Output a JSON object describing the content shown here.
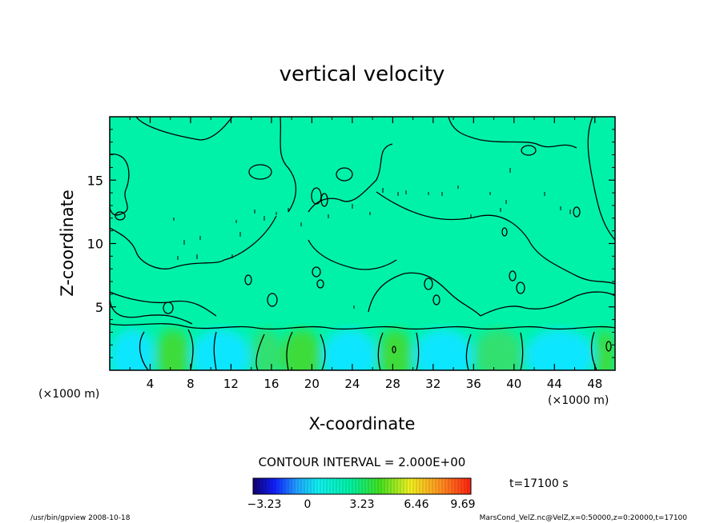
{
  "chart_data": {
    "type": "heatmap",
    "title": "vertical velocity",
    "xlabel": "X-coordinate",
    "ylabel": "Z-coordinate",
    "x_unit_left": "(×1000 m)",
    "x_unit_right": "(×1000 m)",
    "xlim": [
      0,
      50
    ],
    "ylim": [
      0,
      20
    ],
    "xticks": [
      4,
      8,
      12,
      16,
      20,
      24,
      28,
      32,
      36,
      40,
      44,
      48
    ],
    "yticks": [
      5,
      10,
      15
    ],
    "contour_interval_label": "CONTOUR INTERVAL = 2.000E+00",
    "time_label": "t=17100 s",
    "colorbar": {
      "range": [
        -3.23,
        9.69
      ],
      "tick_values": [
        -3.23,
        0,
        3.23,
        6.46,
        9.69
      ],
      "tick_labels": [
        "−3.23",
        "0",
        "3.23",
        "6.46",
        "9.69"
      ]
    },
    "color_regions": [
      {
        "x_range": [
          0,
          4.5
        ],
        "z_range": [
          0,
          3
        ],
        "value": -0.8
      },
      {
        "x_range": [
          4.5,
          8
        ],
        "z_range": [
          0,
          3
        ],
        "value": 1.2
      },
      {
        "x_range": [
          8,
          14
        ],
        "z_range": [
          0,
          3
        ],
        "value": -0.6
      },
      {
        "x_range": [
          14,
          17
        ],
        "z_range": [
          0,
          3
        ],
        "value": 0.8
      },
      {
        "x_range": [
          17,
          21
        ],
        "z_range": [
          0,
          3
        ],
        "value": 1.1
      },
      {
        "x_range": [
          21,
          26.5
        ],
        "z_range": [
          0,
          3
        ],
        "value": -0.9
      },
      {
        "x_range": [
          26.5,
          30
        ],
        "z_range": [
          0,
          3
        ],
        "value": 1.0
      },
      {
        "x_range": [
          30,
          36
        ],
        "z_range": [
          0,
          3
        ],
        "value": -0.7
      },
      {
        "x_range": [
          36,
          41
        ],
        "z_range": [
          0,
          3
        ],
        "value": 0.9
      },
      {
        "x_range": [
          41,
          48
        ],
        "z_range": [
          0,
          3
        ],
        "value": -0.6
      },
      {
        "x_range": [
          48,
          50
        ],
        "z_range": [
          0,
          3
        ],
        "value": 1.4
      }
    ],
    "grid": false
  },
  "footer": {
    "left": "/usr/bin/gpview   2008-10-18",
    "right": "MarsCond_VelZ.nc@VelZ,x=0:50000,z=0:20000,t=17100"
  },
  "colors": {
    "background_field": "#00f2a8",
    "frame": "#000000"
  }
}
